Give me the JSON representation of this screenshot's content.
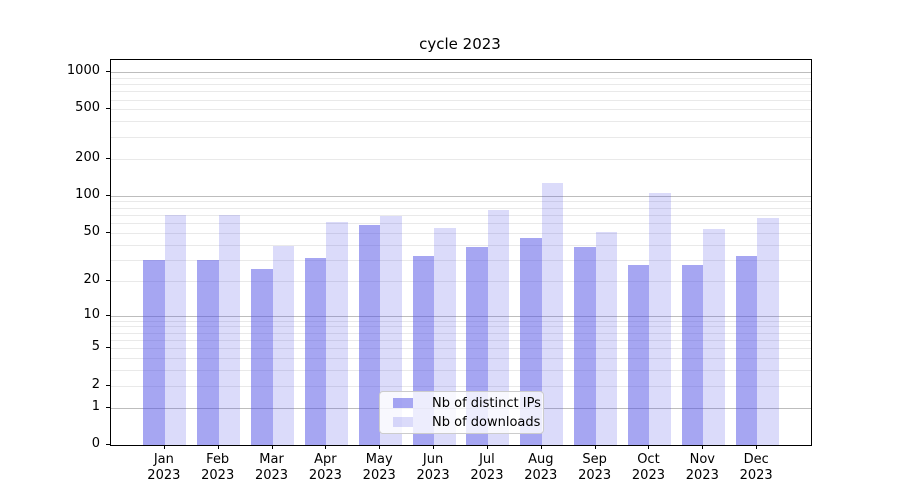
{
  "title": "cycle 2023",
  "chart_data": {
    "type": "bar",
    "title": "cycle 2023",
    "yscale": "log1p",
    "ylim": [
      0,
      1250
    ],
    "grid": "horizontal major+minor",
    "legend_position": "lower center",
    "y_tick_labels": [
      "1000",
      "500",
      "200",
      "100",
      "50",
      "20",
      "10",
      "5",
      "2",
      "1",
      "0"
    ],
    "y_tick_values": [
      1000,
      500,
      200,
      100,
      50,
      20,
      10,
      5,
      2,
      1,
      0
    ],
    "y_major_gridlines": [
      1,
      10,
      100,
      1000
    ],
    "y_minor_gridlines": [
      2,
      3,
      4,
      5,
      6,
      7,
      8,
      9,
      20,
      30,
      40,
      50,
      60,
      70,
      80,
      90,
      200,
      300,
      400,
      500,
      600,
      700,
      800,
      900
    ],
    "categories": [
      "Jan 2023",
      "Feb 2023",
      "Mar 2023",
      "Apr 2023",
      "May 2023",
      "Jun 2023",
      "Jul 2023",
      "Aug 2023",
      "Sep 2023",
      "Oct 2023",
      "Nov 2023",
      "Dec 2023"
    ],
    "series": [
      {
        "name": "Nb of distinct IPs",
        "color": "rgba(77,77,230,0.5)",
        "values": [
          30,
          30,
          25,
          31,
          58,
          32,
          38,
          45,
          38,
          27,
          27,
          32
        ]
      },
      {
        "name": "Nb of downloads",
        "color": "rgba(77,77,230,0.2)",
        "values": [
          70,
          70,
          39,
          61,
          69,
          55,
          77,
          127,
          51,
          106,
          54,
          66
        ]
      }
    ]
  },
  "colors": {
    "bar_distinct_ips": "rgba(77,77,230,0.5)",
    "bar_downloads": "rgba(77,77,230,0.2)",
    "major_gridline": "#bdbdbd",
    "minor_gridline": "#e9e9e9",
    "axis_frame": "#000000",
    "legend_border": "#cccccc",
    "legend_background": "rgba(255,255,255,0.8)"
  }
}
